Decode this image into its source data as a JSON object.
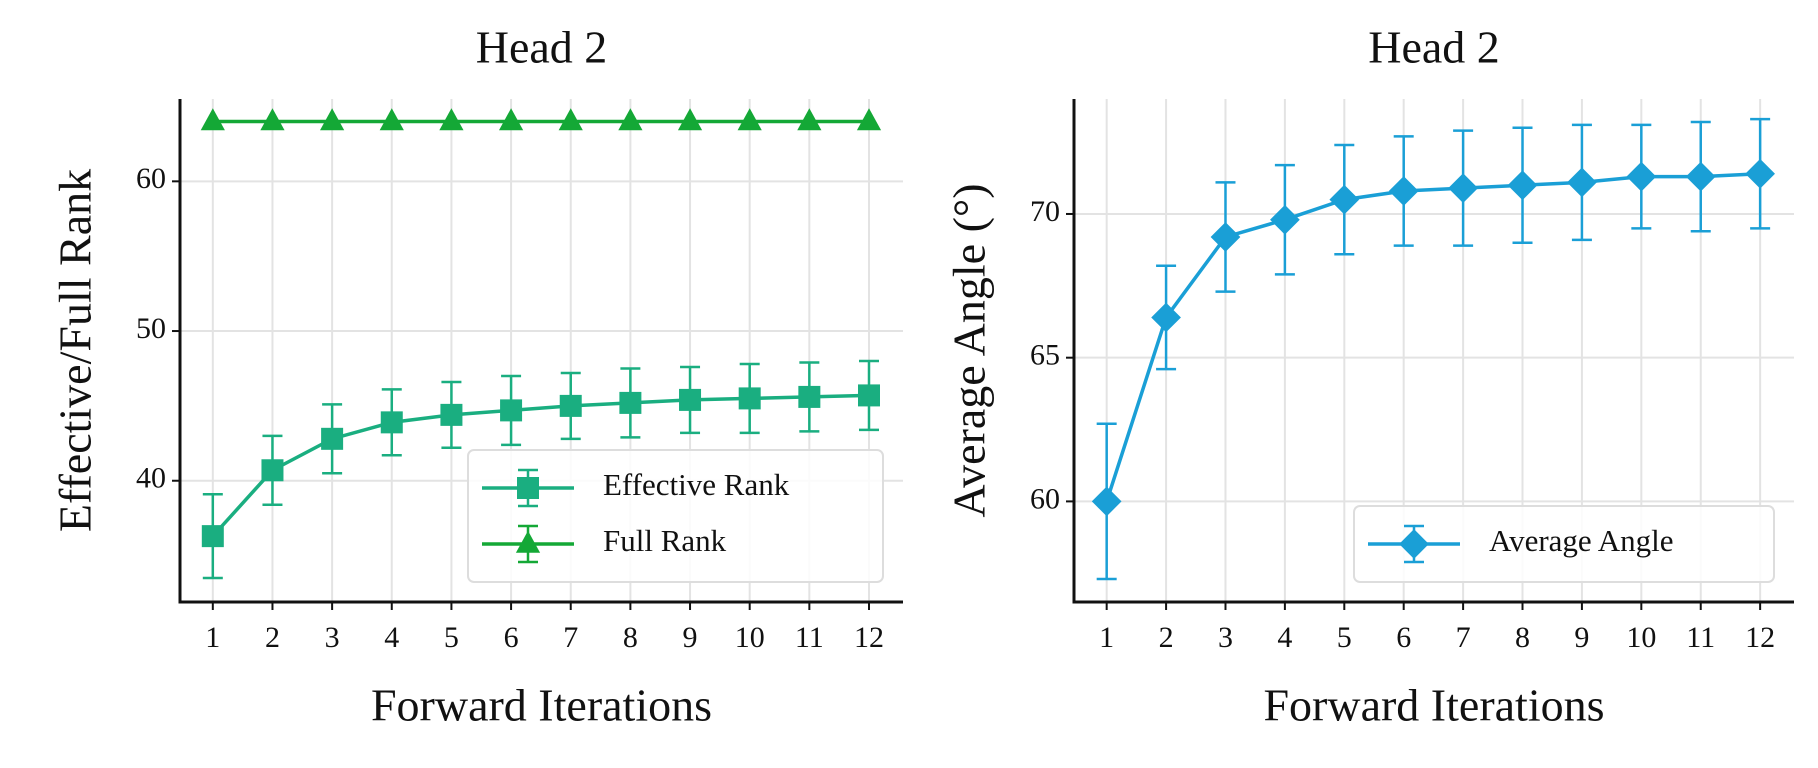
{
  "chart_data": [
    {
      "type": "line",
      "title": "Head 2",
      "xlabel": "Forward Iterations",
      "ylabel": "Effective/Full Rank",
      "x": [
        1,
        2,
        3,
        4,
        5,
        6,
        7,
        8,
        9,
        10,
        11,
        12
      ],
      "series": [
        {
          "name": "Effective Rank",
          "color": "#1aae80",
          "marker": "square",
          "values": [
            36.3,
            40.7,
            42.8,
            43.9,
            44.4,
            44.7,
            45.0,
            45.2,
            45.4,
            45.5,
            45.6,
            45.7
          ],
          "errors": [
            2.8,
            2.3,
            2.3,
            2.2,
            2.2,
            2.3,
            2.2,
            2.3,
            2.2,
            2.3,
            2.3,
            2.3
          ]
        },
        {
          "name": "Full Rank",
          "color": "#14a836",
          "marker": "triangle",
          "values": [
            64,
            64,
            64,
            64,
            64,
            64,
            64,
            64,
            64,
            64,
            64,
            64
          ],
          "errors": [
            0,
            0,
            0,
            0,
            0,
            0,
            0,
            0,
            0,
            0,
            0,
            0
          ]
        }
      ],
      "xlim": [
        0.45,
        12.57
      ],
      "xticks": [
        1,
        2,
        3,
        4,
        5,
        6,
        7,
        8,
        9,
        10,
        11,
        12
      ],
      "ylim": [
        31.9,
        65.5
      ],
      "yticks": [
        40,
        50,
        60
      ],
      "grid": true,
      "legend": "lower right"
    },
    {
      "type": "line",
      "title": "Head 2",
      "xlabel": "Forward Iterations",
      "ylabel": "Average Angle (°)",
      "x": [
        1,
        2,
        3,
        4,
        5,
        6,
        7,
        8,
        9,
        10,
        11,
        12
      ],
      "series": [
        {
          "name": "Average Angle",
          "color": "#1a9fd6",
          "marker": "diamond",
          "values": [
            60.0,
            66.4,
            69.2,
            69.8,
            70.5,
            70.8,
            70.9,
            71.0,
            71.1,
            71.3,
            71.3,
            71.4
          ],
          "errors": [
            2.7,
            1.8,
            1.9,
            1.9,
            1.9,
            1.9,
            2.0,
            2.0,
            2.0,
            1.8,
            1.9,
            1.9
          ]
        }
      ],
      "xlim": [
        0.45,
        12.57
      ],
      "xticks": [
        1,
        2,
        3,
        4,
        5,
        6,
        7,
        8,
        9,
        10,
        11,
        12
      ],
      "ylim": [
        56.5,
        74.0
      ],
      "yticks": [
        60,
        65,
        70
      ],
      "grid": true,
      "legend": "lower right"
    }
  ]
}
